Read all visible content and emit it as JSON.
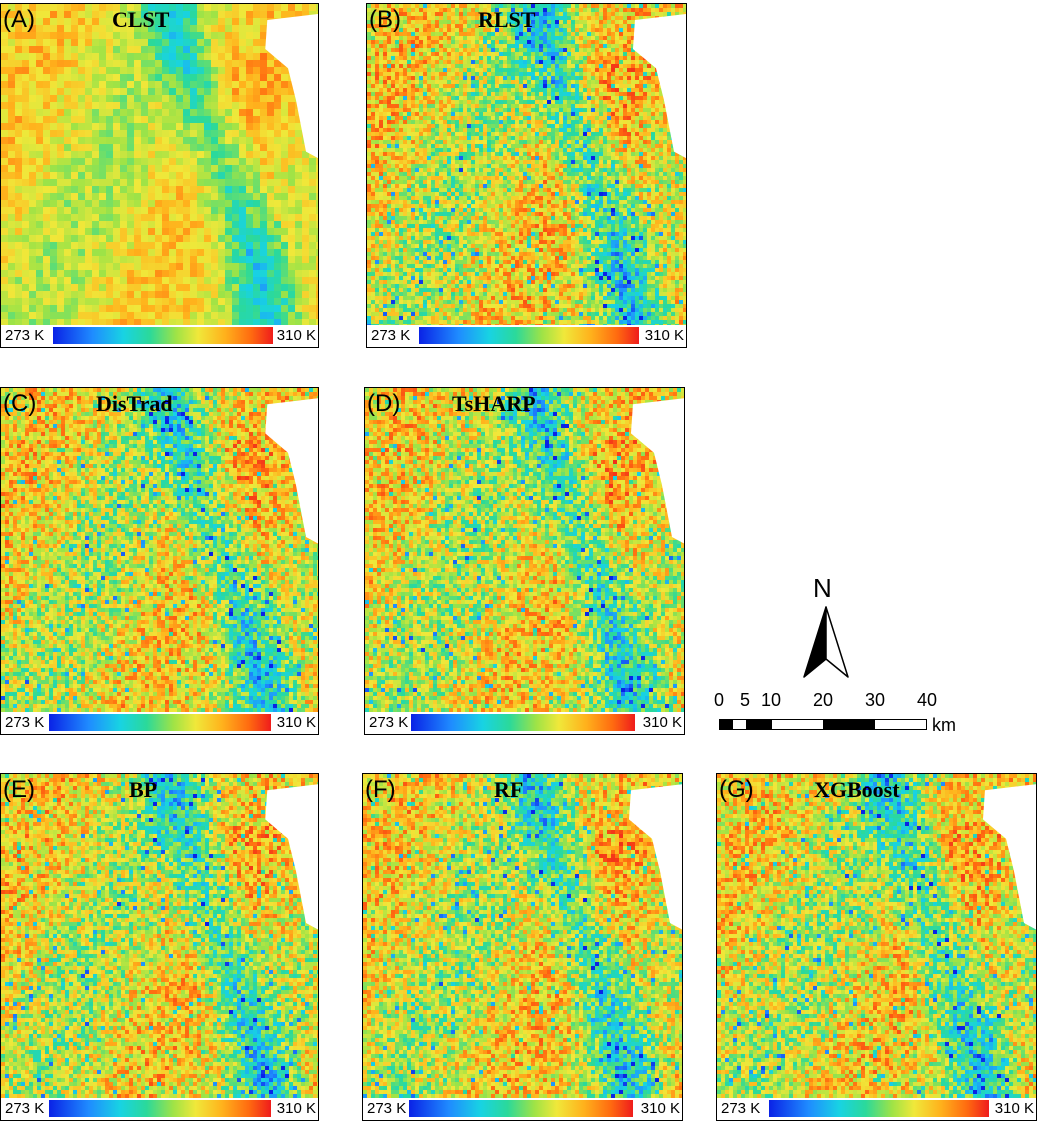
{
  "panels": [
    {
      "letter": "(A)",
      "title": "CLST",
      "legend_min": "273 K",
      "legend_max": "310 K",
      "coarse": true
    },
    {
      "letter": "(B)",
      "title": "RLST",
      "legend_min": "273 K",
      "legend_max": "310 K",
      "coarse": false
    },
    {
      "letter": "(C)",
      "title": "DisTrad",
      "legend_min": "273 K",
      "legend_max": "310 K",
      "coarse": false
    },
    {
      "letter": "(D)",
      "title": "TsHARP",
      "legend_min": "273 K",
      "legend_max": "310 K",
      "coarse": false
    },
    {
      "letter": "(E)",
      "title": "BP",
      "legend_min": "273 K",
      "legend_max": "310 K",
      "coarse": false
    },
    {
      "letter": "(F)",
      "title": "RF",
      "legend_min": "273 K",
      "legend_max": "310 K",
      "coarse": false
    },
    {
      "letter": "(G)",
      "title": "XGBoost",
      "legend_min": "273 K",
      "legend_max": "310 K",
      "coarse": false
    }
  ],
  "colorscale": {
    "min_value": 273,
    "max_value": 310,
    "unit": "K",
    "colors": [
      "#0a22e6",
      "#1f8cff",
      "#18d3e3",
      "#2bd99a",
      "#9fe346",
      "#f0e83a",
      "#ffb21c",
      "#ff6b10",
      "#ef1c1c"
    ]
  },
  "north_arrow": {
    "label": "N"
  },
  "scale_bar": {
    "ticks": [
      "0",
      "5",
      "10",
      "20",
      "30",
      "40"
    ],
    "tick_values": [
      0,
      5,
      10,
      20,
      30,
      40
    ],
    "unit": "km",
    "segment_fill": [
      "black",
      "white",
      "black",
      "white",
      "black",
      "white"
    ]
  }
}
